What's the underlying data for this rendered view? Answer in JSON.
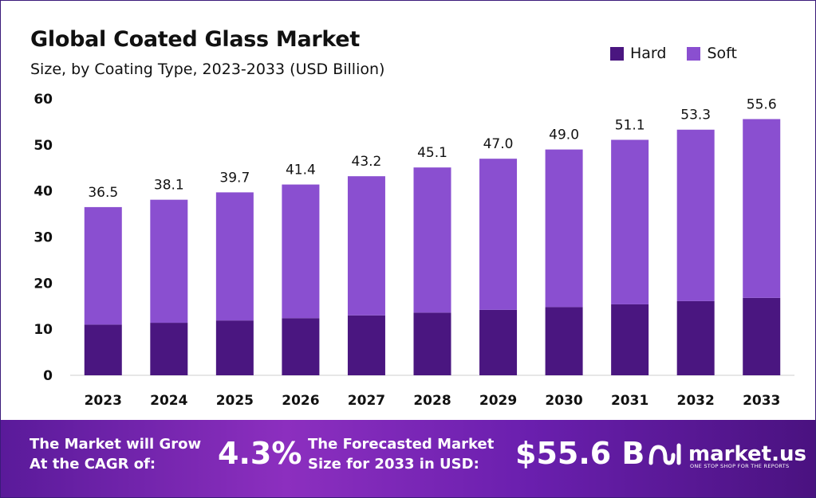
{
  "title": "Global Coated Glass Market",
  "subtitle": "Size, by Coating Type, 2023-2033 (USD Billion)",
  "legend": [
    {
      "label": "Hard",
      "color": "#4a1680"
    },
    {
      "label": "Soft",
      "color": "#8a4fd0"
    }
  ],
  "chart_data": {
    "type": "bar",
    "stacked": true,
    "categories": [
      "2023",
      "2024",
      "2025",
      "2026",
      "2027",
      "2028",
      "2029",
      "2030",
      "2031",
      "2032",
      "2033"
    ],
    "series": [
      {
        "name": "Hard",
        "color": "#4a1680",
        "values": [
          11.0,
          11.4,
          11.9,
          12.4,
          13.0,
          13.6,
          14.2,
          14.8,
          15.4,
          16.1,
          16.8
        ]
      },
      {
        "name": "Soft",
        "color": "#8a4fd0",
        "values": [
          25.5,
          26.7,
          27.8,
          29.0,
          30.2,
          31.5,
          32.8,
          34.2,
          35.7,
          37.2,
          38.8
        ]
      }
    ],
    "totals_labels": [
      "36.5",
      "38.1",
      "39.7",
      "41.4",
      "43.2",
      "45.1",
      "47.0",
      "49.0",
      "51.1",
      "53.3",
      "55.6"
    ],
    "y_ticks": [
      0,
      10,
      20,
      30,
      40,
      50,
      60
    ],
    "ylim": [
      0,
      60
    ],
    "grid": false,
    "legend_position": "top-right"
  },
  "banner": {
    "cagr_label": "The Market will Grow At the CAGR of:",
    "cagr_value": "4.3%",
    "forecast_label": "The Forecasted Market Size for 2033 in USD:",
    "forecast_value": "$55.6 B",
    "brand_name": "market.us",
    "brand_tagline": "ONE STOP SHOP FOR THE REPORTS"
  }
}
